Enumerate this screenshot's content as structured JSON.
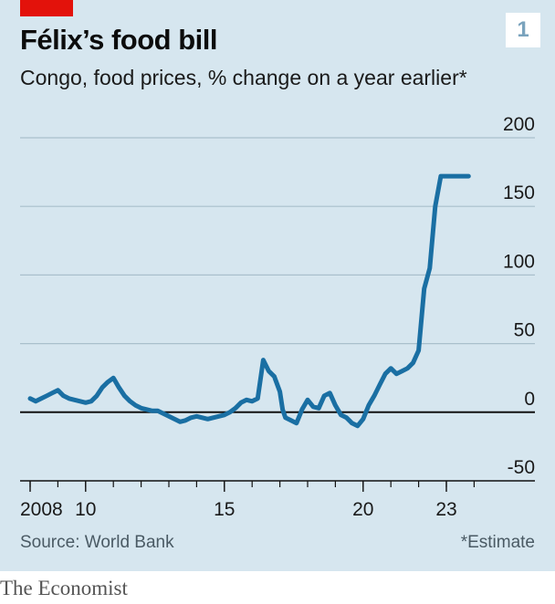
{
  "header": {
    "title": "Félix’s food bill",
    "subtitle": "Congo, food prices, % change on a year earlier*",
    "badge": "1"
  },
  "footer": {
    "source": "Source: World Bank",
    "note": "*Estimate",
    "brand": "The Economist"
  },
  "colors": {
    "line": "#1a6fa3",
    "panel": "#d6e6ef",
    "grid": "#a9bfcc",
    "accent": "#e3120b"
  },
  "chart_data": {
    "type": "line",
    "title": "Félix’s food bill",
    "ylabel": "",
    "xlabel": "",
    "ylim": [
      -50,
      200
    ],
    "xlim": [
      2008,
      2025
    ],
    "y_ticks": [
      -50,
      0,
      50,
      100,
      150,
      200
    ],
    "y_tick_labels": [
      "-50",
      "0",
      "50",
      "100",
      "150",
      "200"
    ],
    "x_ticks": [
      2008,
      2010,
      2015,
      2020,
      2023
    ],
    "x_tick_labels": [
      "2008",
      "10",
      "15",
      "20",
      "23"
    ],
    "grid": true,
    "series": [
      {
        "name": "",
        "x": [
          2008.0,
          2008.2,
          2008.4,
          2008.6,
          2008.8,
          2009.0,
          2009.2,
          2009.4,
          2009.6,
          2009.8,
          2010.0,
          2010.2,
          2010.4,
          2010.6,
          2010.8,
          2011.0,
          2011.2,
          2011.4,
          2011.6,
          2011.8,
          2012.0,
          2012.2,
          2012.4,
          2012.6,
          2012.8,
          2013.0,
          2013.2,
          2013.4,
          2013.6,
          2013.8,
          2014.0,
          2014.2,
          2014.4,
          2014.6,
          2014.8,
          2015.0,
          2015.2,
          2015.4,
          2015.6,
          2015.8,
          2016.0,
          2016.2,
          2016.4,
          2016.6,
          2016.8,
          2017.0,
          2017.1,
          2017.2,
          2017.4,
          2017.6,
          2017.8,
          2018.0,
          2018.2,
          2018.4,
          2018.6,
          2018.8,
          2019.0,
          2019.2,
          2019.4,
          2019.6,
          2019.8,
          2020.0,
          2020.2,
          2020.4,
          2020.6,
          2020.8,
          2021.0,
          2021.2,
          2021.4,
          2021.6,
          2021.8,
          2022.0,
          2022.2,
          2022.4,
          2022.6,
          2022.8,
          2023.0,
          2023.2,
          2023.4,
          2023.6,
          2023.8
        ],
        "values": [
          10,
          8,
          10,
          12,
          14,
          16,
          12,
          10,
          9,
          8,
          7,
          8,
          12,
          18,
          22,
          25,
          18,
          12,
          8,
          5,
          3,
          2,
          1,
          1,
          -1,
          -3,
          -5,
          -7,
          -6,
          -4,
          -3,
          -4,
          -5,
          -4,
          -3,
          -2,
          0,
          3,
          7,
          9,
          8,
          10,
          38,
          30,
          26,
          15,
          2,
          -4,
          -6,
          -8,
          2,
          9,
          4,
          3,
          12,
          14,
          5,
          -2,
          -4,
          -8,
          -10,
          -5,
          5,
          12,
          20,
          28,
          32,
          28,
          30,
          32,
          36,
          45,
          90,
          105,
          150,
          172,
          172,
          172,
          172,
          172,
          172
        ]
      }
    ]
  }
}
